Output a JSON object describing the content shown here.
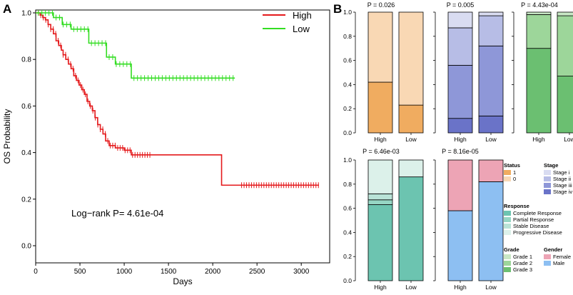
{
  "panels": {
    "a": "A",
    "b": "B"
  },
  "colors": {
    "high_km": "#e41a1c",
    "low_km": "#33dd22",
    "status": [
      "#f0ac60",
      "#f9d8b4"
    ],
    "stage": [
      "#d9dcf1",
      "#b7bde6",
      "#8e97d8",
      "#6a73c8"
    ],
    "response": [
      "#6cc4b0",
      "#96d6c4",
      "#b9e3d7",
      "#dcf1ea"
    ],
    "grade": [
      "#c8e7c5",
      "#9dd69a",
      "#6bbf71"
    ],
    "gender": [
      "#eda4b5",
      "#8dbff2"
    ]
  },
  "chart_data": [
    {
      "type": "line",
      "id": "km",
      "xlabel": "Days",
      "ylabel": "OS Probability",
      "xlim": [
        0,
        3300
      ],
      "ylim": [
        0,
        1.0
      ],
      "xticks": [
        "0",
        "500",
        "1000",
        "1500",
        "2000",
        "2500",
        "3000"
      ],
      "yticks": [
        "0.0",
        "0.2",
        "0.4",
        "0.6",
        "0.8",
        "1.0"
      ],
      "annotation": "Log−rank P= 4.61e-04",
      "legend": [
        "High",
        "Low"
      ],
      "series": [
        {
          "name": "High",
          "x": [
            0,
            50,
            80,
            110,
            140,
            170,
            200,
            230,
            260,
            290,
            310,
            340,
            370,
            400,
            430,
            460,
            490,
            520,
            550,
            580,
            610,
            640,
            670,
            700,
            730,
            760,
            790,
            830,
            900,
            1000,
            1080,
            1100,
            2100,
            3200
          ],
          "y": [
            1.0,
            0.99,
            0.98,
            0.97,
            0.95,
            0.93,
            0.91,
            0.88,
            0.86,
            0.84,
            0.82,
            0.8,
            0.78,
            0.76,
            0.73,
            0.71,
            0.69,
            0.67,
            0.65,
            0.62,
            0.6,
            0.58,
            0.55,
            0.52,
            0.5,
            0.48,
            0.45,
            0.43,
            0.42,
            0.41,
            0.39,
            0.39,
            0.26,
            0.26
          ]
        },
        {
          "name": "Low",
          "x": [
            0,
            150,
            200,
            300,
            400,
            600,
            800,
            900,
            1080,
            1200,
            2250
          ],
          "y": [
            1.0,
            1.0,
            0.98,
            0.95,
            0.93,
            0.87,
            0.81,
            0.78,
            0.72,
            0.72,
            0.72
          ]
        }
      ]
    },
    {
      "type": "bar",
      "id": "status",
      "title": "P = 0.026",
      "categories": [
        "High",
        "Low"
      ],
      "stack_bottom_to_top": [
        "1",
        "0"
      ],
      "series": [
        {
          "name": "1",
          "values": [
            0.42,
            0.23
          ]
        },
        {
          "name": "0",
          "values": [
            0.58,
            0.77
          ]
        }
      ],
      "yticks": [
        "0.0",
        "0.2",
        "0.4",
        "0.6",
        "0.8",
        "1.0"
      ],
      "ylim": [
        0,
        1
      ]
    },
    {
      "type": "bar",
      "id": "stage",
      "title": "P = 0.005",
      "categories": [
        "High",
        "Low"
      ],
      "series": [
        {
          "name": "Stage iv",
          "values": [
            0.12,
            0.14
          ]
        },
        {
          "name": "Stage iii",
          "values": [
            0.44,
            0.58
          ]
        },
        {
          "name": "Stage ii",
          "values": [
            0.31,
            0.25
          ]
        },
        {
          "name": "Stage i",
          "values": [
            0.13,
            0.03
          ]
        }
      ],
      "ylim": [
        0,
        1
      ]
    },
    {
      "type": "bar",
      "id": "grade",
      "title": "P = 4.43e-04",
      "categories": [
        "High",
        "Low"
      ],
      "series": [
        {
          "name": "Grade 3",
          "values": [
            0.7,
            0.47
          ]
        },
        {
          "name": "Grade 2",
          "values": [
            0.28,
            0.5
          ]
        },
        {
          "name": "Grade 1",
          "values": [
            0.02,
            0.03
          ]
        }
      ],
      "ylim": [
        0,
        1
      ]
    },
    {
      "type": "bar",
      "id": "response",
      "title": "P = 6.46e-03",
      "categories": [
        "High",
        "Low"
      ],
      "series": [
        {
          "name": "Complete Response",
          "values": [
            0.63,
            0.86
          ]
        },
        {
          "name": "Partial Response",
          "values": [
            0.04,
            0.0
          ]
        },
        {
          "name": "Stable Disease",
          "values": [
            0.05,
            0.0
          ]
        },
        {
          "name": "Progressive Disease",
          "values": [
            0.28,
            0.14
          ]
        }
      ],
      "yticks": [
        "0.0",
        "0.2",
        "0.4",
        "0.6",
        "0.8",
        "1.0"
      ],
      "ylim": [
        0,
        1
      ]
    },
    {
      "type": "bar",
      "id": "gender",
      "title": "P = 8.16e-05",
      "categories": [
        "High",
        "Low"
      ],
      "series": [
        {
          "name": "Male",
          "values": [
            0.58,
            0.82
          ]
        },
        {
          "name": "Female",
          "values": [
            0.42,
            0.18
          ]
        }
      ],
      "ylim": [
        0,
        1
      ]
    }
  ],
  "legends": {
    "status": {
      "title": "Status",
      "items": [
        "1",
        "0"
      ]
    },
    "stage": {
      "title": "Stage",
      "items": [
        "Stage i",
        "Stage ii",
        "Stage iii",
        "Stage iv"
      ]
    },
    "response": {
      "title": "Response",
      "items": [
        "Complete Response",
        "Partial Response",
        "Stable Disease",
        "Progressive Disease"
      ]
    },
    "grade": {
      "title": "Grade",
      "items": [
        "Grade 1",
        "Grade 2",
        "Grade 3"
      ]
    },
    "gender": {
      "title": "Gender",
      "items": [
        "Female",
        "Male"
      ]
    }
  }
}
